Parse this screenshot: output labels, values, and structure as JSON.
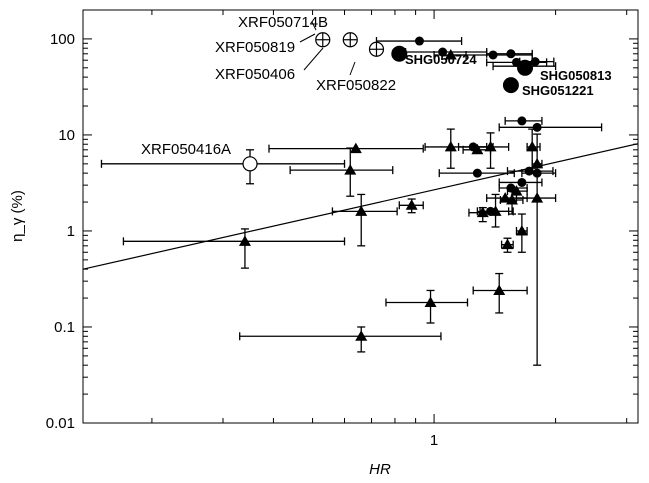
{
  "chart_data": {
    "type": "scatter",
    "title": "",
    "xlabel": "HR",
    "ylabel": "η_γ (%)",
    "xscale": "log",
    "yscale": "log",
    "xlim": [
      0.135,
      3.2
    ],
    "ylim": [
      0.01,
      200
    ],
    "x_ticks": [
      {
        "value": 1,
        "label": "1"
      }
    ],
    "y_ticks": [
      {
        "value": 0.01,
        "label": "0.01"
      },
      {
        "value": 0.1,
        "label": "0.1"
      },
      {
        "value": 1,
        "label": "1"
      },
      {
        "value": 10,
        "label": "10"
      },
      {
        "value": 100,
        "label": "100"
      }
    ],
    "grid": false,
    "legend": "none",
    "fit_line": {
      "x": [
        0.135,
        3.2
      ],
      "y": [
        0.4,
        8.1
      ]
    },
    "series": [
      {
        "marker": "filled-circle",
        "points": [
          {
            "x": 0.92,
            "y": 95,
            "xerr": [
              0.2,
              0.25
            ]
          },
          {
            "x": 1.05,
            "y": 73,
            "xerr": [
              0.2,
              0.3
            ]
          },
          {
            "x": 1.4,
            "y": 68,
            "xerr": [
              0.3,
              0.35
            ]
          },
          {
            "x": 1.55,
            "y": 70,
            "xerr": [
              0.2,
              0.2
            ]
          },
          {
            "x": 1.6,
            "y": 57,
            "xerr": [
              0.25,
              0.3
            ]
          },
          {
            "x": 1.7,
            "y": 52,
            "xerr": [
              0.3,
              0.3
            ]
          },
          {
            "x": 1.78,
            "y": 58,
            "xerr": [
              0.15,
              0.2
            ]
          },
          {
            "x": 1.65,
            "y": 14,
            "xerr": [
              0.15,
              0.2
            ]
          },
          {
            "x": 1.8,
            "y": 12,
            "xerr": [
              0.35,
              0.8
            ]
          },
          {
            "x": 1.25,
            "y": 7.5,
            "xerr": [
              0.1,
              0.1
            ]
          },
          {
            "x": 1.28,
            "y": 4,
            "xerr": [
              0.25,
              0.3
            ]
          },
          {
            "x": 1.72,
            "y": 4.2,
            "xerr": [
              0.2,
              0.25
            ]
          },
          {
            "x": 1.55,
            "y": 2.8,
            "xerr": [
              0.1,
              0.15
            ]
          },
          {
            "x": 1.65,
            "y": 3.2,
            "xerr": [
              0.2,
              0.2
            ]
          },
          {
            "x": 1.38,
            "y": 1.6,
            "xerr": [
              0.1,
              0.15
            ]
          },
          {
            "x": 1.8,
            "y": 4,
            "xerr": [
              0.15,
              0.2
            ]
          }
        ]
      },
      {
        "marker": "filled-triangle",
        "points": [
          {
            "x": 1.1,
            "y": 68,
            "xerr": [
              0.1,
              0.1
            ]
          },
          {
            "x": 0.64,
            "y": 7.2,
            "xerr": [
              0.25,
              0.3
            ]
          },
          {
            "x": 0.34,
            "y": 0.78,
            "xerr": [
              0.17,
              0.26
            ],
            "yerr": [
              0.37,
              0.27
            ]
          },
          {
            "x": 0.62,
            "y": 4.3,
            "xerr": [
              0.18,
              0.17
            ],
            "yerr": [
              2.0,
              3.0
            ]
          },
          {
            "x": 0.66,
            "y": 1.6,
            "xerr": [
              0.1,
              0.15
            ],
            "yerr": [
              0.9,
              0.8
            ]
          },
          {
            "x": 0.66,
            "y": 0.08,
            "xerr": [
              0.33,
              0.38
            ],
            "yerr": [
              0.025,
              0.02
            ]
          },
          {
            "x": 0.88,
            "y": 1.85,
            "xerr": [
              0.06,
              0.06
            ],
            "yerr": [
              0.3,
              0.3
            ]
          },
          {
            "x": 0.98,
            "y": 0.18,
            "xerr": [
              0.22,
              0.23
            ],
            "yerr": [
              0.07,
              0.06
            ]
          },
          {
            "x": 1.1,
            "y": 7.5,
            "xerr": [
              0.15,
              0.3
            ],
            "yerr": [
              3.0,
              4.0
            ]
          },
          {
            "x": 1.28,
            "y": 7,
            "xerr": [
              0.1,
              0.1
            ]
          },
          {
            "x": 1.32,
            "y": 1.55,
            "xerr": [
              0.1,
              0.1
            ],
            "yerr": [
              0.3,
              0.2
            ]
          },
          {
            "x": 1.38,
            "y": 7.5,
            "xerr": [
              0.12,
              0.15
            ],
            "yerr": [
              3.0,
              3.0
            ]
          },
          {
            "x": 1.42,
            "y": 1.6,
            "xerr": [
              0.12,
              0.15
            ],
            "yerr": [
              0.5,
              0.8
            ]
          },
          {
            "x": 1.5,
            "y": 2.2,
            "xerr": [
              0.15,
              0.2
            ]
          },
          {
            "x": 1.52,
            "y": 0.72,
            "xerr": [
              0.05,
              0.05
            ],
            "yerr": [
              0.12,
              0.12
            ]
          },
          {
            "x": 1.56,
            "y": 2.1,
            "xerr": [
              0.1,
              0.1
            ],
            "yerr": [
              0.6,
              0.6
            ]
          },
          {
            "x": 1.6,
            "y": 2.6,
            "xerr": [
              0.08,
              0.1
            ]
          },
          {
            "x": 1.65,
            "y": 1.0,
            "xerr": [
              0.05,
              0.05
            ],
            "yerr": [
              0.4,
              0.5
            ]
          },
          {
            "x": 1.75,
            "y": 7.5,
            "xerr": [
              0.05,
              0.08
            ],
            "yerr": [
              3.0,
              4.0
            ]
          },
          {
            "x": 1.8,
            "y": 2.2,
            "xerr": [
              0.2,
              0.2
            ],
            "yerr": [
              2.16,
              8.0
            ]
          },
          {
            "x": 1.8,
            "y": 5,
            "xerr": [
              0.05,
              0.05
            ]
          },
          {
            "x": 1.45,
            "y": 0.24,
            "xerr": [
              0.2,
              0.25
            ],
            "yerr": [
              0.1,
              0.12
            ]
          }
        ]
      },
      {
        "marker": "big-filled-circle",
        "points": [
          {
            "label": "SHG050724",
            "x": 0.82,
            "y": 70
          },
          {
            "label": "SHG050813",
            "x": 1.68,
            "y": 50
          },
          {
            "label": "SHG051221",
            "x": 1.55,
            "y": 33
          }
        ]
      },
      {
        "marker": "open-circle",
        "points": [
          {
            "label": "XRF050714B",
            "x": 0.62,
            "y": 98
          },
          {
            "label": "XRF050819",
            "x": 0.53,
            "y": 98
          },
          {
            "label": "XRF050406",
            "x": 0.72,
            "y": 78
          },
          {
            "label": "XRF050416A",
            "x": 0.35,
            "y": 5,
            "xerr": [
              0.2,
              0.25
            ],
            "yerr": [
              1.9,
              2.0
            ]
          }
        ]
      }
    ],
    "annotations": [
      {
        "text": "XRF050714B"
      },
      {
        "text": "XRF050819"
      },
      {
        "text": "XRF050406"
      },
      {
        "text": "XRF050822"
      },
      {
        "text": "SHG050724"
      },
      {
        "text": "SHG050813"
      },
      {
        "text": "SHG051221"
      },
      {
        "text": "XRF050416A"
      }
    ]
  }
}
